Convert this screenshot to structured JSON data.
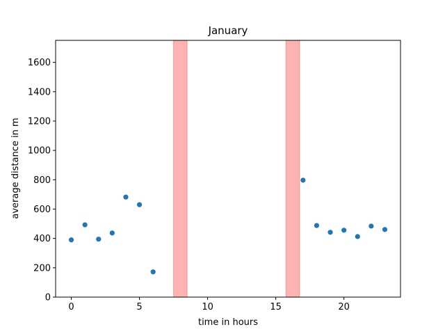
{
  "chart_data": {
    "type": "scatter",
    "title": "January",
    "xlabel": "time in hours",
    "ylabel": "average distance in m",
    "xlim": [
      -1.15,
      24.15
    ],
    "ylim": [
      0,
      1750
    ],
    "xticks": [
      0,
      5,
      10,
      15,
      20
    ],
    "yticks": [
      0,
      200,
      400,
      600,
      800,
      1000,
      1200,
      1400,
      1600
    ],
    "grid": false,
    "series": [
      {
        "color": "#1f77b4",
        "points": [
          {
            "x": 0,
            "y": 390
          },
          {
            "x": 1,
            "y": 493
          },
          {
            "x": 2,
            "y": 395
          },
          {
            "x": 3,
            "y": 437
          },
          {
            "x": 4,
            "y": 682
          },
          {
            "x": 5,
            "y": 630
          },
          {
            "x": 6,
            "y": 172
          },
          {
            "x": 17,
            "y": 797
          },
          {
            "x": 18,
            "y": 488
          },
          {
            "x": 19,
            "y": 442
          },
          {
            "x": 20,
            "y": 456
          },
          {
            "x": 21,
            "y": 413
          },
          {
            "x": 22,
            "y": 484
          },
          {
            "x": 23,
            "y": 461
          }
        ]
      }
    ],
    "shaded_spans": [
      {
        "x0": 7.5,
        "x1": 8.5,
        "color": "#ff0000",
        "opacity": 0.3
      },
      {
        "x0": 15.75,
        "x1": 16.75,
        "color": "#ff0000",
        "opacity": 0.3
      }
    ]
  }
}
